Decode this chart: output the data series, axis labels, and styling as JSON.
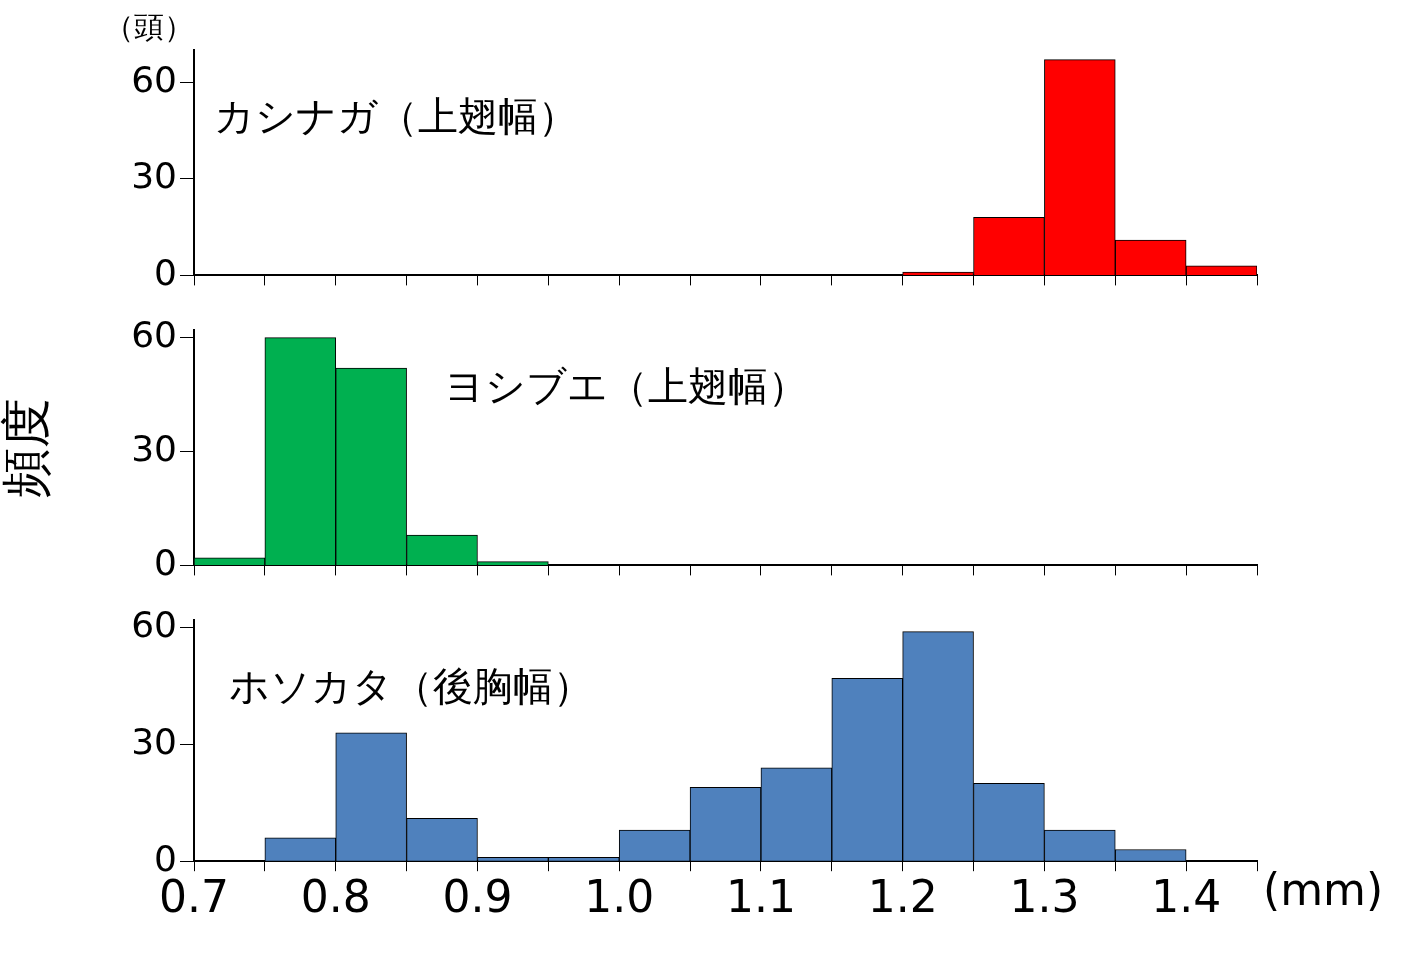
{
  "chart_data": [
    {
      "type": "histogram",
      "title": "カシナガ（上翅幅）",
      "annotations": [
        "（頭）"
      ],
      "bins": [
        0.7,
        0.75,
        0.8,
        0.85,
        0.9,
        0.95,
        1.0,
        1.05,
        1.1,
        1.15,
        1.2,
        1.25,
        1.3,
        1.35,
        1.4,
        1.45
      ],
      "values": [
        0,
        0,
        0,
        0,
        0,
        0,
        0,
        0,
        0,
        0,
        1,
        18,
        67,
        11,
        3
      ],
      "color": "#ff0000",
      "xlim": [
        0.7,
        1.45
      ],
      "xticks": [
        {
          "value": 0.7,
          "label": null
        },
        {
          "value": 0.75,
          "label": null
        },
        {
          "value": 0.8,
          "label": null
        },
        {
          "value": 0.85,
          "label": null
        },
        {
          "value": 0.9,
          "label": null
        },
        {
          "value": 0.95,
          "label": null
        },
        {
          "value": 1.0,
          "label": null
        },
        {
          "value": 1.05,
          "label": null
        },
        {
          "value": 1.1,
          "label": null
        },
        {
          "value": 1.15,
          "label": null
        },
        {
          "value": 1.2,
          "label": null
        },
        {
          "value": 1.25,
          "label": null
        },
        {
          "value": 1.3,
          "label": null
        },
        {
          "value": 1.35,
          "label": null
        },
        {
          "value": 1.4,
          "label": null
        },
        {
          "value": 1.45,
          "label": null
        }
      ],
      "ylim": [
        0,
        70
      ],
      "yticks": [
        0,
        30,
        60
      ],
      "tick_labels": "y",
      "grid": false,
      "legend": false
    },
    {
      "type": "histogram",
      "title": "ヨシブエ（上翅幅）",
      "ylabel": "頻度",
      "bins": [
        0.7,
        0.75,
        0.8,
        0.85,
        0.9,
        0.95,
        1.0,
        1.05,
        1.1,
        1.15,
        1.2,
        1.25,
        1.3,
        1.35,
        1.4,
        1.45
      ],
      "values": [
        2,
        60,
        52,
        8,
        1,
        0,
        0,
        0,
        0,
        0,
        0,
        0,
        0,
        0,
        0
      ],
      "color": "#00b050",
      "xlim": [
        0.7,
        1.45
      ],
      "xticks": [
        {
          "value": 0.7,
          "label": null
        },
        {
          "value": 0.75,
          "label": null
        },
        {
          "value": 0.8,
          "label": null
        },
        {
          "value": 0.85,
          "label": null
        },
        {
          "value": 0.9,
          "label": null
        },
        {
          "value": 0.95,
          "label": null
        },
        {
          "value": 1.0,
          "label": null
        },
        {
          "value": 1.05,
          "label": null
        },
        {
          "value": 1.1,
          "label": null
        },
        {
          "value": 1.15,
          "label": null
        },
        {
          "value": 1.2,
          "label": null
        },
        {
          "value": 1.25,
          "label": null
        },
        {
          "value": 1.3,
          "label": null
        },
        {
          "value": 1.35,
          "label": null
        },
        {
          "value": 1.4,
          "label": null
        },
        {
          "value": 1.45,
          "label": null
        }
      ],
      "ylim": [
        0,
        62
      ],
      "yticks": [
        0,
        30,
        60
      ],
      "tick_labels": "y",
      "grid": false,
      "legend": false
    },
    {
      "type": "histogram",
      "title": "ホソカタ（後胸幅）",
      "xlabel": "(mm)",
      "bins": [
        0.7,
        0.75,
        0.8,
        0.85,
        0.9,
        0.95,
        1.0,
        1.05,
        1.1,
        1.15,
        1.2,
        1.25,
        1.3,
        1.35,
        1.4,
        1.45
      ],
      "values": [
        0,
        6,
        33,
        11,
        1,
        1,
        8,
        19,
        24,
        47,
        59,
        20,
        8,
        3,
        0
      ],
      "color": "#4f81bd",
      "xlim": [
        0.7,
        1.45
      ],
      "xticks": [
        0.7,
        {
          "value": 0.75,
          "label": null
        },
        0.8,
        {
          "value": 0.85,
          "label": null
        },
        0.9,
        {
          "value": 0.95,
          "label": null
        },
        {
          "value": 1.0,
          "label": "1.0"
        },
        {
          "value": 1.05,
          "label": null
        },
        1.1,
        {
          "value": 1.15,
          "label": null
        },
        1.2,
        {
          "value": 1.25,
          "label": null
        },
        1.3,
        {
          "value": 1.35,
          "label": null
        },
        1.4,
        {
          "value": 1.45,
          "label": null
        }
      ],
      "ylim": [
        0,
        62
      ],
      "yticks": [
        0,
        30,
        60
      ],
      "grid": false,
      "legend": false
    }
  ]
}
